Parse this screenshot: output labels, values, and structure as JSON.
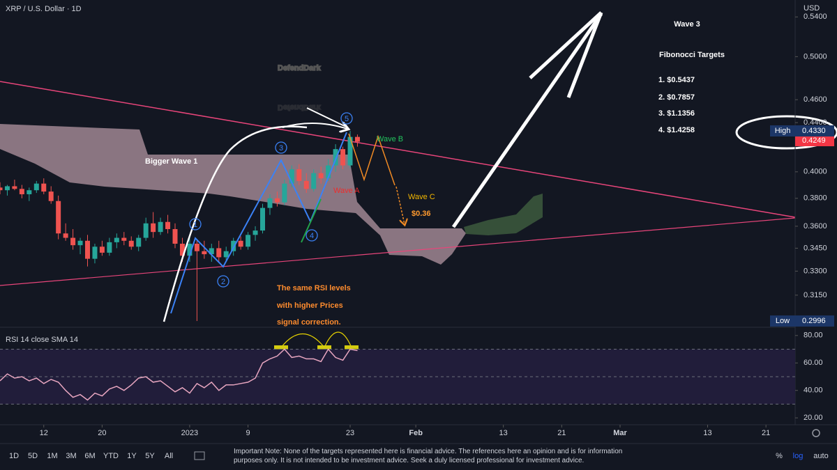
{
  "header": {
    "symbol": "XRP / U.S. Dollar · 1D",
    "currency": "USD"
  },
  "watermark": "DefendDark",
  "chart_data": [
    {
      "type": "candlestick",
      "x": [
        -6,
        -5,
        -4,
        -3,
        -2,
        -1,
        0,
        1,
        2,
        3,
        4,
        5,
        6,
        7,
        8,
        9,
        10,
        11,
        12,
        13,
        14,
        15,
        16,
        17,
        18,
        19,
        20,
        21,
        22,
        23,
        24,
        25,
        26,
        27,
        28,
        29,
        30,
        31,
        32,
        33,
        34,
        35,
        36,
        37,
        38,
        39,
        40,
        41,
        42,
        43
      ],
      "open": [
        0.388,
        0.386,
        0.389,
        0.387,
        0.383,
        0.386,
        0.391,
        0.385,
        0.378,
        0.355,
        0.352,
        0.347,
        0.35,
        0.338,
        0.346,
        0.342,
        0.349,
        0.352,
        0.35,
        0.346,
        0.352,
        0.362,
        0.356,
        0.363,
        0.358,
        0.348,
        0.34,
        0.348,
        0.343,
        0.341,
        0.345,
        0.339,
        0.343,
        0.35,
        0.346,
        0.354,
        0.357,
        0.373,
        0.38,
        0.377,
        0.391,
        0.402,
        0.393,
        0.387,
        0.399,
        0.395,
        0.405,
        0.418,
        0.405,
        0.428
      ],
      "high": [
        0.392,
        0.39,
        0.394,
        0.39,
        0.388,
        0.393,
        0.395,
        0.389,
        0.382,
        0.362,
        0.358,
        0.352,
        0.354,
        0.348,
        0.35,
        0.352,
        0.355,
        0.356,
        0.353,
        0.354,
        0.366,
        0.37,
        0.366,
        0.368,
        0.362,
        0.352,
        0.352,
        0.35,
        0.35,
        0.348,
        0.35,
        0.346,
        0.352,
        0.353,
        0.356,
        0.36,
        0.376,
        0.383,
        0.385,
        0.394,
        0.405,
        0.406,
        0.399,
        0.402,
        0.404,
        0.41,
        0.422,
        0.42,
        0.433,
        0.43
      ],
      "low": [
        0.383,
        0.382,
        0.386,
        0.38,
        0.378,
        0.384,
        0.383,
        0.376,
        0.351,
        0.35,
        0.344,
        0.341,
        0.333,
        0.335,
        0.34,
        0.34,
        0.345,
        0.347,
        0.344,
        0.343,
        0.35,
        0.352,
        0.354,
        0.355,
        0.345,
        0.336,
        0.336,
        0.2996,
        0.338,
        0.336,
        0.336,
        0.337,
        0.34,
        0.344,
        0.344,
        0.35,
        0.355,
        0.368,
        0.374,
        0.375,
        0.388,
        0.39,
        0.384,
        0.385,
        0.391,
        0.393,
        0.4,
        0.402,
        0.403,
        0.42
      ],
      "close": [
        0.386,
        0.389,
        0.387,
        0.383,
        0.386,
        0.391,
        0.385,
        0.378,
        0.355,
        0.352,
        0.347,
        0.35,
        0.338,
        0.346,
        0.342,
        0.349,
        0.352,
        0.35,
        0.346,
        0.352,
        0.362,
        0.356,
        0.363,
        0.358,
        0.348,
        0.34,
        0.348,
        0.343,
        0.341,
        0.345,
        0.339,
        0.343,
        0.35,
        0.346,
        0.354,
        0.357,
        0.373,
        0.38,
        0.377,
        0.391,
        0.402,
        0.393,
        0.387,
        0.399,
        0.395,
        0.405,
        0.418,
        0.405,
        0.428,
        0.424
      ],
      "up_color": "#26a69a",
      "down_color": "#ef5350",
      "log_scale": true,
      "ylim": [
        0.296,
        0.558
      ],
      "yticks": [
        {
          "value": 0.54,
          "label": "0.5400"
        },
        {
          "value": 0.5,
          "label": "0.5000"
        },
        {
          "value": 0.46,
          "label": "0.4600"
        },
        {
          "value": 0.44,
          "label": "0.4400"
        },
        {
          "value": 0.4,
          "label": "0.4000"
        },
        {
          "value": 0.38,
          "label": "0.3800"
        },
        {
          "value": 0.36,
          "label": "0.3600"
        },
        {
          "value": 0.345,
          "label": "0.3450"
        },
        {
          "value": 0.33,
          "label": "0.3300"
        },
        {
          "value": 0.315,
          "label": "0.3150"
        }
      ],
      "xlim": [
        -6,
        103
      ],
      "xticks": [
        {
          "value": 0,
          "label": "12"
        },
        {
          "value": 8,
          "label": "20"
        },
        {
          "value": 20,
          "label": "2023"
        },
        {
          "value": 28,
          "label": "9"
        },
        {
          "value": 42,
          "label": "23"
        },
        {
          "value": 51,
          "label": "Feb"
        },
        {
          "value": 63,
          "label": "13"
        },
        {
          "value": 71,
          "label": "21"
        },
        {
          "value": 79,
          "label": "Mar"
        },
        {
          "value": 91,
          "label": "13"
        },
        {
          "value": 99,
          "label": "21"
        }
      ],
      "price_tags": [
        {
          "label": "High",
          "value": 0.433,
          "value_label": "0.4330"
        },
        {
          "label": "Low",
          "value": 0.2996,
          "value_label": "0.2996"
        }
      ],
      "last_price": {
        "value": 0.4249,
        "value_label": "0.4249",
        "color": "#f23645"
      }
    },
    {
      "type": "line",
      "title": "RSI 14 close SMA 14",
      "color": "#e8a6c0",
      "x": [
        -6,
        -5,
        -4,
        -3,
        -2,
        -1,
        0,
        1,
        2,
        3,
        4,
        5,
        6,
        7,
        8,
        9,
        10,
        11,
        12,
        13,
        14,
        15,
        16,
        17,
        18,
        19,
        20,
        21,
        22,
        23,
        24,
        25,
        26,
        27,
        28,
        29,
        30,
        31,
        32,
        33,
        34,
        35,
        36,
        37,
        38,
        39,
        40,
        41,
        42,
        43
      ],
      "values": [
        47,
        52,
        49,
        50,
        47,
        49,
        45,
        48,
        46,
        40,
        35,
        37,
        33,
        38,
        36,
        41,
        43,
        40,
        44,
        49,
        50,
        46,
        47,
        43,
        39,
        42,
        38,
        45,
        42,
        46,
        40,
        44,
        44,
        45,
        46,
        49,
        60,
        63,
        65,
        70,
        64,
        65,
        63,
        63,
        61,
        70,
        64,
        62,
        70,
        69
      ],
      "ylim": [
        15,
        86
      ],
      "yticks": [
        {
          "value": 80,
          "label": "80.00"
        },
        {
          "value": 60,
          "label": "60.00"
        },
        {
          "value": 40,
          "label": "40.00"
        },
        {
          "value": 20,
          "label": "20.00"
        }
      ],
      "bands": [
        30,
        50,
        70
      ]
    }
  ],
  "annotations": {
    "wave_numbers": [
      "1",
      "2",
      "3",
      "4",
      "5"
    ],
    "bigger_wave": "Bigger Wave 1",
    "wave_a": "Wave A",
    "wave_b": "Wave B",
    "wave_c": "Wave C",
    "wave_c_target": "$0.36",
    "rsi_note": [
      "The same RSI levels",
      "with higher Prices",
      "signal correction."
    ],
    "wave3": "Wave 3",
    "fib_title": "Fibonocci Targets",
    "fib_targets": [
      "1. $0.5437",
      "2. $0.7857",
      "3. $1.1356",
      "4. $1.4258"
    ]
  },
  "toolbar": {
    "ranges": [
      "1D",
      "5D",
      "1M",
      "3M",
      "6M",
      "YTD",
      "1Y",
      "5Y",
      "All"
    ],
    "note": "Important Note: None of the targets represented here is financial advice. The references here an opinion and is for information purposes only. It is not intended to be investment advice. Seek a duly licensed professional for investment advice.",
    "scale_options": [
      "%",
      "log",
      "auto"
    ]
  }
}
